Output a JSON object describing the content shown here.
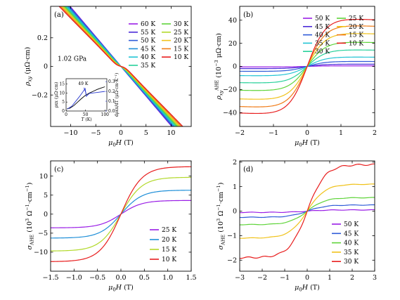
{
  "chart_data": [
    {
      "panel": "(a)",
      "type": "line",
      "xlabel": "μ0H (T)",
      "ylabel": "ρxy (μΩ·cm)",
      "xlim": [
        -14,
        14
      ],
      "ylim": [
        -0.42,
        0.42
      ],
      "xticks": [
        -10,
        -5,
        0,
        5,
        10
      ],
      "yticks": [
        -0.2,
        0,
        0.2
      ],
      "annotation": "1.02 GPa",
      "legend_columns": 2,
      "series": [
        {
          "name": "60 K",
          "color": "#9a1ee6",
          "amp": 0.0
        },
        {
          "name": "55 K",
          "color": "#4b2ad8",
          "amp": 0.0
        },
        {
          "name": "50 K",
          "color": "#2f5bd8",
          "amp": 0.0
        },
        {
          "name": "45 K",
          "color": "#1f8fd8",
          "amp": 0.005
        },
        {
          "name": "40 K",
          "color": "#22c4d4",
          "amp": 0.01
        },
        {
          "name": "35 K",
          "color": "#27d19a",
          "amp": 0.015
        },
        {
          "name": "30 K",
          "color": "#5fd43a",
          "amp": 0.02
        },
        {
          "name": "25 K",
          "color": "#b2d92a",
          "amp": 0.025
        },
        {
          "name": "20 K",
          "color": "#f0c21a",
          "amp": 0.03
        },
        {
          "name": "15 K",
          "color": "#f07c18",
          "amp": 0.035
        },
        {
          "name": "10 K",
          "color": "#e81e1e",
          "amp": 0.04
        }
      ],
      "inset": {
        "xlabel": "T (K)",
        "ylabel_left": "ρxx (μΩ·cm)",
        "ylabel_right": "dρxx/dT (μΩ·cm·K⁻¹)",
        "xticks": [
          0,
          50,
          100
        ],
        "yticks_left": [
          0,
          5,
          10,
          15
        ],
        "yticks_right": [
          0.0,
          0.1,
          0.2,
          0.3
        ],
        "annotation": "49 K",
        "rho_xx": [
          [
            2,
            1.2
          ],
          [
            10,
            1.6
          ],
          [
            20,
            3
          ],
          [
            30,
            5
          ],
          [
            40,
            7
          ],
          [
            49,
            8.6
          ],
          [
            60,
            10
          ],
          [
            70,
            11
          ],
          [
            80,
            12
          ],
          [
            90,
            12.8
          ],
          [
            100,
            13.5
          ]
        ],
        "drho_dt": [
          [
            3,
            0.02
          ],
          [
            15,
            0.05
          ],
          [
            25,
            0.1
          ],
          [
            35,
            0.15
          ],
          [
            44,
            0.2
          ],
          [
            49,
            0.23
          ],
          [
            52,
            0.15
          ],
          [
            60,
            0.18
          ],
          [
            80,
            0.19
          ],
          [
            100,
            0.2
          ]
        ]
      }
    },
    {
      "panel": "(b)",
      "type": "line",
      "xlabel": "μ0H (T)",
      "ylabel": "ρxyAHE (10−3 μΩ·cm)",
      "xlim": [
        -2,
        2
      ],
      "ylim": [
        -52,
        52
      ],
      "xticks": [
        -2,
        -1,
        0,
        1,
        2
      ],
      "yticks": [
        -40,
        -20,
        0,
        20,
        40
      ],
      "legend_columns": 2,
      "series": [
        {
          "name": "50 K",
          "color": "#9a1ee6",
          "sat": 0.5
        },
        {
          "name": "45 K",
          "color": "#4b2ad8",
          "sat": 2
        },
        {
          "name": "40 K",
          "color": "#2f5bd8",
          "sat": 4.5
        },
        {
          "name": "35 K",
          "color": "#22c4d4",
          "sat": 8.5
        },
        {
          "name": "30 K",
          "color": "#27d19a",
          "sat": 15
        },
        {
          "name": "25 K",
          "color": "#5fd43a",
          "sat": 22
        },
        {
          "name": "20 K",
          "color": "#f0c21a",
          "sat": 30
        },
        {
          "name": "15 K",
          "color": "#f07c18",
          "sat": 37
        },
        {
          "name": "10 K",
          "color": "#e81e1e",
          "sat": 43
        }
      ]
    },
    {
      "panel": "(c)",
      "type": "line",
      "xlabel": "μ0H (T)",
      "ylabel": "σAHE (10³ Ω⁻¹·cm⁻¹)",
      "xlim": [
        -1.5,
        1.5
      ],
      "ylim": [
        -15,
        14
      ],
      "xticks": [
        -1.5,
        -1.0,
        -0.5,
        0.0,
        0.5,
        1.0,
        1.5
      ],
      "xticklabels": [
        "−1.5",
        "−1.0",
        "−0.5",
        "0.0",
        "0.5",
        "1.0",
        "1.5"
      ],
      "yticks": [
        -10,
        -5,
        0,
        5,
        10
      ],
      "series": [
        {
          "name": "25 K",
          "color": "#9a1ee6",
          "sat": 3.6
        },
        {
          "name": "20 K",
          "color": "#1f8fd8",
          "sat": 6.3
        },
        {
          "name": "15 K",
          "color": "#b2d92a",
          "sat": 9.7
        },
        {
          "name": "10 K",
          "color": "#e81e1e",
          "sat": 12.5
        }
      ]
    },
    {
      "panel": "(d)",
      "type": "line",
      "xlabel": "μ0H (T)",
      "ylabel": "σAHE (10³ Ω⁻¹·cm⁻¹)",
      "xlim": [
        -3,
        3
      ],
      "ylim": [
        -2.45,
        2.05
      ],
      "xticks": [
        -3,
        -2,
        -1,
        0,
        1,
        2,
        3
      ],
      "yticks": [
        -2,
        -1,
        0,
        1,
        2
      ],
      "series": [
        {
          "name": "50 K",
          "color": "#9a1ee6",
          "sat": 0.05
        },
        {
          "name": "45 K",
          "color": "#2f5bd8",
          "sat": 0.25
        },
        {
          "name": "40 K",
          "color": "#5fd43a",
          "sat": 0.55
        },
        {
          "name": "35 K",
          "color": "#f0c21a",
          "sat": 1.1
        },
        {
          "name": "30 K",
          "color": "#e81e1e",
          "sat": 1.9
        }
      ]
    }
  ]
}
